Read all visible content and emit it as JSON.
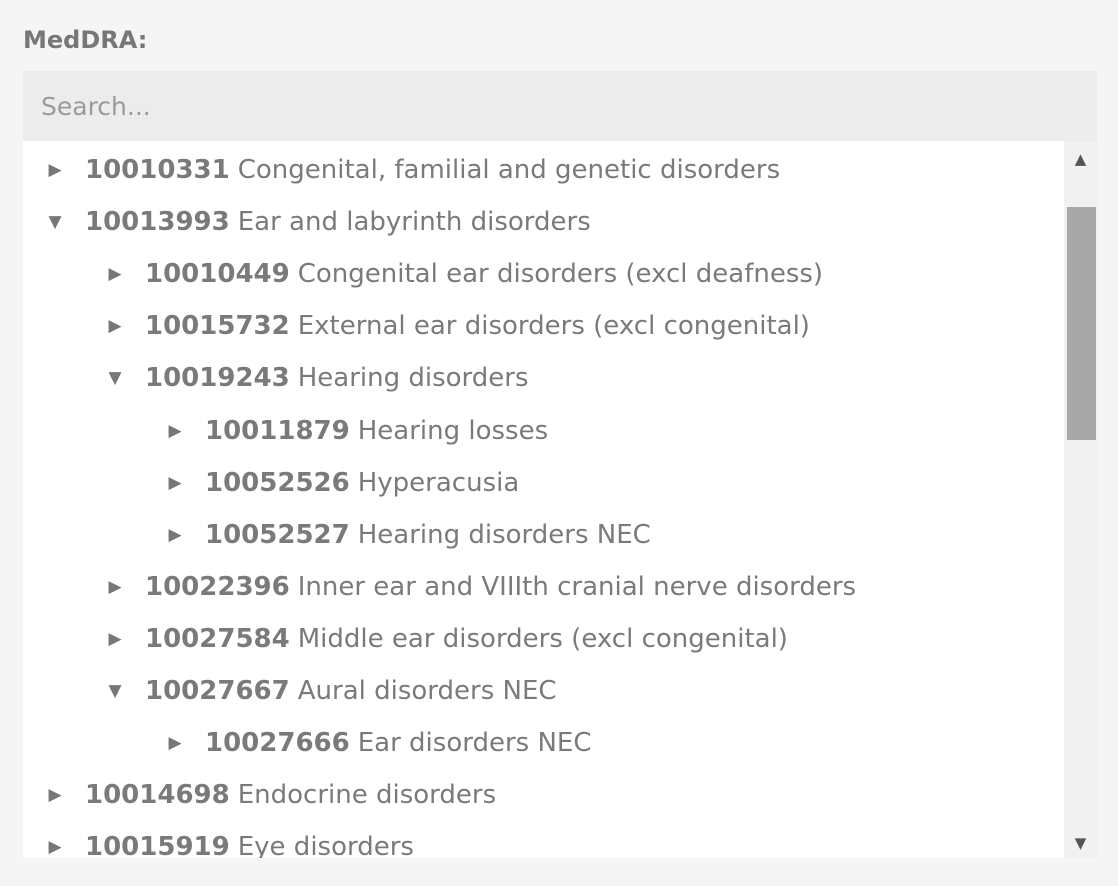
{
  "field_label": "MedDRA:",
  "search": {
    "placeholder": "Search..."
  },
  "icons": {
    "collapsed": "▶",
    "expanded": "▼",
    "scroll_up": "▲",
    "scroll_down": "▼"
  },
  "tree": [
    {
      "code": "10010331",
      "name": "Congenital, familial and genetic disorders",
      "level": 0,
      "expanded": false
    },
    {
      "code": "10013993",
      "name": "Ear and labyrinth disorders",
      "level": 0,
      "expanded": true
    },
    {
      "code": "10010449",
      "name": "Congenital ear disorders (excl deafness)",
      "level": 1,
      "expanded": false
    },
    {
      "code": "10015732",
      "name": "External ear disorders (excl congenital)",
      "level": 1,
      "expanded": false
    },
    {
      "code": "10019243",
      "name": "Hearing disorders",
      "level": 1,
      "expanded": true
    },
    {
      "code": "10011879",
      "name": "Hearing losses",
      "level": 2,
      "expanded": false
    },
    {
      "code": "10052526",
      "name": "Hyperacusia",
      "level": 2,
      "expanded": false
    },
    {
      "code": "10052527",
      "name": "Hearing disorders NEC",
      "level": 2,
      "expanded": false
    },
    {
      "code": "10022396",
      "name": "Inner ear and VIIIth cranial nerve disorders",
      "level": 1,
      "expanded": false
    },
    {
      "code": "10027584",
      "name": "Middle ear disorders (excl congenital)",
      "level": 1,
      "expanded": false
    },
    {
      "code": "10027667",
      "name": "Aural disorders NEC",
      "level": 1,
      "expanded": true
    },
    {
      "code": "10027666",
      "name": "Ear disorders NEC",
      "level": 2,
      "expanded": false
    },
    {
      "code": "10014698",
      "name": "Endocrine disorders",
      "level": 0,
      "expanded": false
    },
    {
      "code": "10015919",
      "name": "Eye disorders",
      "level": 0,
      "expanded": false
    }
  ]
}
